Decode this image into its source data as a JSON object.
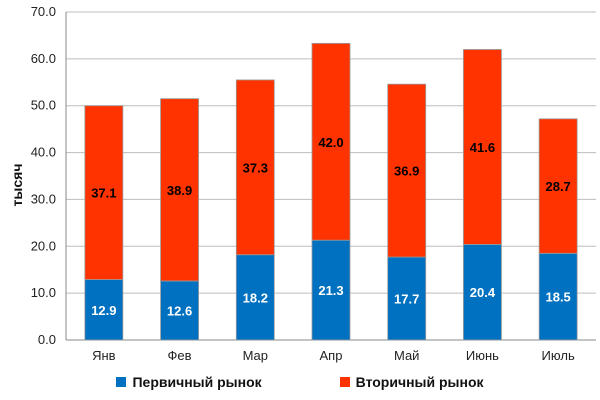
{
  "chart_data": {
    "type": "bar",
    "stacked": true,
    "categories": [
      "Янв",
      "Фев",
      "Мар",
      "Апр",
      "Май",
      "Июнь",
      "Июль"
    ],
    "series": [
      {
        "name": "Первичный рынок",
        "values": [
          12.9,
          12.6,
          18.2,
          21.3,
          17.7,
          20.4,
          18.5
        ],
        "color": "#0070C0",
        "label_color": "#ffffff"
      },
      {
        "name": "Вторичный рынок",
        "values": [
          37.1,
          38.9,
          37.3,
          42.0,
          36.9,
          41.6,
          28.7
        ],
        "color": "#FF3300",
        "label_color": "#000000"
      }
    ],
    "ylabel": "тысяч",
    "ylim": [
      0,
      70
    ],
    "yticks": [
      "0.0",
      "10.0",
      "20.0",
      "30.0",
      "40.0",
      "50.0",
      "60.0",
      "70.0"
    ],
    "grid": true,
    "legend_position": "bottom"
  }
}
